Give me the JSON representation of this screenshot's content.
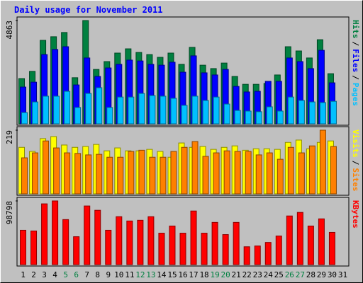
{
  "title": "Daily usage for November 2011",
  "legend_separator": "/",
  "chart_data": [
    {
      "type": "bar",
      "ylim": [
        0,
        4863
      ],
      "yticks": [
        4863
      ],
      "series": [
        {
          "name": "Hits",
          "color": "#008040",
          "values": [
            2130,
            2470,
            3930,
            4100,
            4300,
            2170,
            4863,
            2560,
            2930,
            3330,
            3530,
            3360,
            3260,
            3130,
            3330,
            2800,
            3600,
            2760,
            2600,
            2860,
            2230,
            1860,
            1860,
            1900,
            2300,
            3630,
            3430,
            3100,
            3960,
            2360,
            null
          ]
        },
        {
          "name": "Files",
          "color": "#0000ff",
          "values": [
            1730,
            1960,
            3260,
            3500,
            3630,
            1830,
            3100,
            2230,
            2630,
            2800,
            3000,
            2960,
            2800,
            2760,
            2900,
            2430,
            3200,
            2400,
            2300,
            2560,
            1760,
            1500,
            1530,
            2000,
            2000,
            3100,
            2930,
            2600,
            3460,
            1930,
            null
          ]
        },
        {
          "name": "Pages",
          "color": "#00c0ff",
          "values": [
            530,
            1030,
            1300,
            1300,
            1530,
            770,
            1430,
            1700,
            770,
            1260,
            1260,
            1430,
            1330,
            1300,
            1200,
            870,
            1300,
            1100,
            1260,
            930,
            630,
            600,
            570,
            800,
            600,
            1260,
            1100,
            1030,
            1000,
            1060,
            null
          ]
        }
      ]
    },
    {
      "type": "bar",
      "ylim": [
        0,
        219
      ],
      "yticks": [
        219
      ],
      "series": [
        {
          "name": "Visits",
          "color": "#ffff00",
          "values": [
            160,
            146,
            190,
            197,
            168,
            160,
            163,
            170,
            148,
            158,
            148,
            148,
            153,
            146,
            126,
            175,
            160,
            163,
            153,
            160,
            165,
            150,
            155,
            155,
            153,
            177,
            185,
            155,
            177,
            182,
            null
          ]
        },
        {
          "name": "Sites",
          "color": "#ff8000",
          "values": [
            124,
            141,
            182,
            158,
            141,
            139,
            134,
            136,
            126,
            126,
            146,
            150,
            126,
            126,
            146,
            160,
            180,
            129,
            141,
            148,
            146,
            146,
            134,
            141,
            119,
            160,
            141,
            165,
            219,
            163,
            null
          ]
        }
      ]
    },
    {
      "type": "bar",
      "ylim": [
        0,
        98798
      ],
      "yticks": [
        98798
      ],
      "categories": [
        "1",
        "2",
        "3",
        "4",
        "5",
        "6",
        "7",
        "8",
        "9",
        "10",
        "11",
        "12",
        "13",
        "14",
        "15",
        "16",
        "17",
        "18",
        "19",
        "20",
        "21",
        "22",
        "23",
        "24",
        "25",
        "26",
        "27",
        "28",
        "29",
        "30",
        "31"
      ],
      "category_colors": [
        "#000000",
        "#000000",
        "#000000",
        "#000000",
        "#008040",
        "#008040",
        "#000000",
        "#000000",
        "#000000",
        "#000000",
        "#000000",
        "#008040",
        "#008040",
        "#000000",
        "#000000",
        "#000000",
        "#000000",
        "#000000",
        "#008040",
        "#008040",
        "#000000",
        "#000000",
        "#000000",
        "#000000",
        "#000000",
        "#008040",
        "#008040",
        "#000000",
        "#000000",
        "#000000",
        "#000000"
      ],
      "series": [
        {
          "name": "KBytes",
          "color": "#ff0000",
          "values": [
            53300,
            52200,
            94300,
            98798,
            69900,
            43300,
            91000,
            84300,
            53300,
            74400,
            67700,
            68800,
            74400,
            48800,
            59900,
            48800,
            83200,
            48800,
            65500,
            46600,
            65500,
            27700,
            28900,
            34400,
            44400,
            75500,
            81000,
            59900,
            71000,
            50000,
            null
          ]
        }
      ]
    }
  ]
}
